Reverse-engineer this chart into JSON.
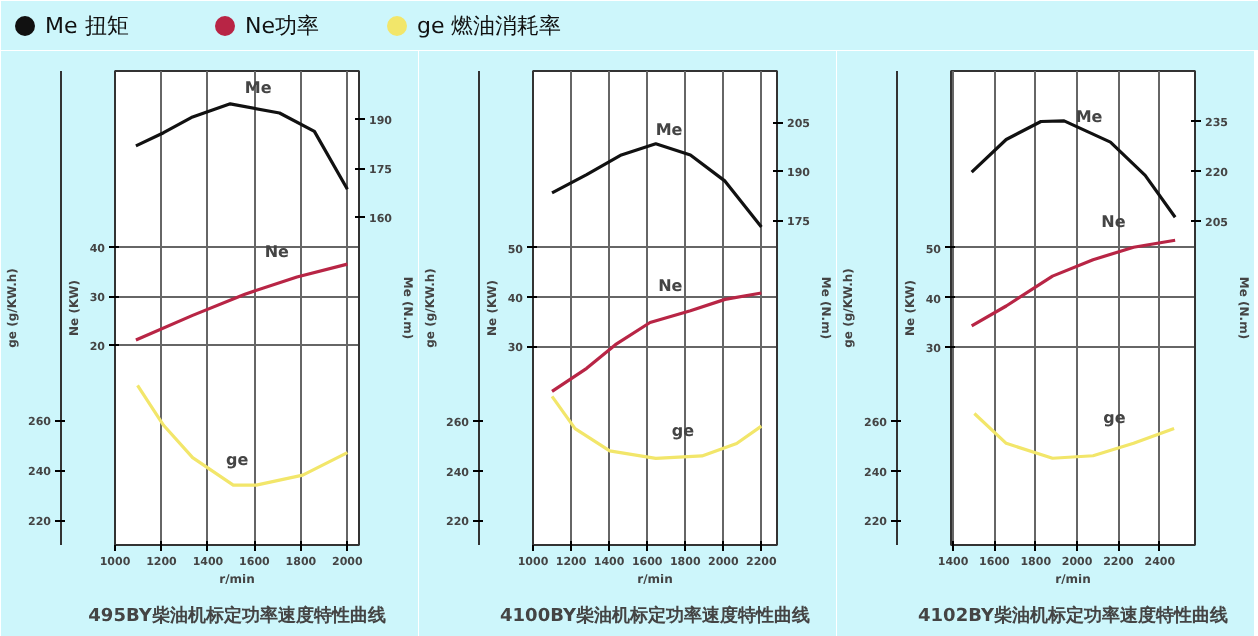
{
  "chart_data": [
    {
      "type": "line",
      "title": "495BY柴油机标定功率速度特性曲线",
      "xlabel": "r/min",
      "ylabel": "Ne (KW)",
      "y2label": "Me (N.m)",
      "y3label": "ge (g/KW.h)",
      "xlim": [
        1000,
        2050
      ],
      "xticks": [
        1000,
        1200,
        1400,
        1600,
        1800,
        2000
      ],
      "ylim": [
        -20.5,
        75.7
      ],
      "yticks": [
        20,
        30,
        40
      ],
      "y2lim": [
        60.2,
        204.6
      ],
      "y2ticks": [
        160,
        175,
        190
      ],
      "y3lim": [
        210,
        400
      ],
      "y3ticks": [
        220,
        240,
        260
      ],
      "grid": true,
      "legend": "top",
      "marker": "none",
      "line_style": "solid",
      "annotations": [
        "Me",
        "Ne",
        "ge"
      ],
      "series": [
        {
          "name": "Me 扭矩",
          "color": "#111111",
          "axis": "y2",
          "x": [
            1090,
            1209,
            1334,
            1496,
            1708,
            1858,
            2000
          ],
          "values": [
            181.8,
            185.8,
            190.6,
            194.6,
            191.8,
            186.2,
            168.6
          ]
        },
        {
          "name": "Ne功率",
          "color": "#b82545",
          "x": [
            1090,
            1334,
            1559,
            1783,
            2000
          ],
          "values": [
            21.1,
            26.1,
            30.4,
            33.9,
            36.5
          ]
        },
        {
          "name": "ge 燃油消耗率",
          "color": "#f2e66a",
          "axis": "y3",
          "x": [
            1097,
            1209,
            1334,
            1509,
            1608,
            1808,
            2000
          ],
          "values": [
            274,
            258,
            245,
            234,
            234,
            238,
            247
          ]
        }
      ]
    },
    {
      "type": "line",
      "title": "4100BY柴油机标定功率速度特性曲线",
      "xlabel": "r/min",
      "ylabel": "Ne (KW)",
      "y2label": "Me (N.m)",
      "y3label": "ge (g/KW.h)",
      "xlim": [
        1000,
        2282
      ],
      "xticks": [
        1000,
        1200,
        1400,
        1600,
        1800,
        2000,
        2200
      ],
      "ylim": [
        -10.4,
        85.9
      ],
      "yticks": [
        30,
        40,
        50
      ],
      "y2lim": [
        76,
        220.6
      ],
      "y2ticks": [
        175,
        190,
        205
      ],
      "y3lim": [
        210.1,
        401.1
      ],
      "y3ticks": [
        220,
        240,
        260
      ],
      "grid": true,
      "marker": "none",
      "line_style": "solid",
      "annotations": [
        "Me",
        "Ne",
        "ge"
      ],
      "series": [
        {
          "color": "#111111",
          "axis": "y2",
          "x": [
            1100,
            1282,
            1464,
            1645,
            1827,
            2009,
            2200
          ],
          "values": [
            183.4,
            189,
            195,
            198.4,
            195,
            187,
            173
          ]
        },
        {
          "color": "#b82545",
          "x": [
            1100,
            1282,
            1433,
            1615,
            1827,
            2009,
            2200
          ],
          "values": [
            20.8,
            25.5,
            30.3,
            34.8,
            37.2,
            39.5,
            40.8
          ]
        },
        {
          "color": "#f2e66a",
          "axis": "y3",
          "x": [
            1100,
            1221,
            1403,
            1645,
            1888,
            2070,
            2200
          ],
          "values": [
            270,
            257,
            248,
            245,
            246,
            251,
            258
          ]
        }
      ]
    },
    {
      "type": "line",
      "title": "4102BY柴油机标定功率速度特性曲线",
      "xlabel": "r/min",
      "ylabel": "Ne (KW)",
      "y2label": "Me (N.m)",
      "y3label": "ge (g/KW.h)",
      "xlim": [
        1390,
        2570
      ],
      "xticks": [
        1400,
        1600,
        1800,
        2000,
        2200,
        2400
      ],
      "ylim": [
        -9.7,
        85.5
      ],
      "yticks": [
        30,
        40,
        50
      ],
      "y2lim": [
        107.4,
        250
      ],
      "y2ticks": [
        205,
        220,
        235
      ],
      "y3lim": [
        210.1,
        400.8
      ],
      "y3ticks": [
        220,
        240,
        260
      ],
      "grid": true,
      "marker": "none",
      "line_style": "solid",
      "annotations": [
        "Me",
        "Ne",
        "ge"
      ],
      "series": [
        {
          "color": "#111111",
          "axis": "y2",
          "x": [
            1490,
            1657,
            1825,
            1937,
            2161,
            2329,
            2474
          ],
          "values": [
            219.6,
            229.4,
            234.8,
            235,
            228.6,
            218.6,
            206
          ]
        },
        {
          "color": "#b82545",
          "x": [
            1490,
            1657,
            1881,
            2077,
            2273,
            2474
          ],
          "values": [
            34.3,
            38.3,
            44.3,
            47.6,
            50.1,
            51.5
          ]
        },
        {
          "color": "#f2e66a",
          "axis": "y3",
          "x": [
            1503,
            1657,
            1881,
            2077,
            2273,
            2469
          ],
          "values": [
            263,
            251,
            245,
            246,
            251,
            257
          ]
        }
      ]
    }
  ]
}
